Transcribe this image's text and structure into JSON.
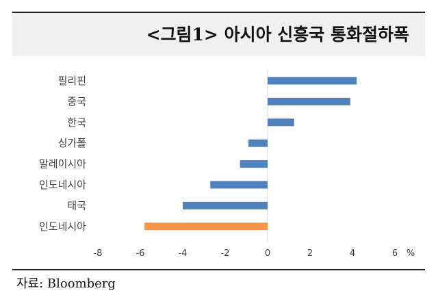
{
  "title": "<그림1> 아시아 신흥국 통화절하폭",
  "source": "자료: Bloomberg",
  "chart_data": {
    "type": "bar",
    "orientation": "horizontal",
    "categories": [
      "필리핀",
      "중국",
      "한국",
      "싱가폴",
      "말레이시아",
      "인도네시아",
      "태국",
      "인도네시아"
    ],
    "values": [
      4.2,
      3.9,
      1.25,
      -0.9,
      -1.3,
      -2.7,
      -4.0,
      -5.8
    ],
    "colors": [
      "#4f81bd",
      "#4f81bd",
      "#4f81bd",
      "#4f81bd",
      "#4f81bd",
      "#4f81bd",
      "#4f81bd",
      "#f79646"
    ],
    "x_ticks": [
      -8,
      -6,
      -4,
      -2,
      0,
      2,
      4,
      6
    ],
    "x_unit": "%",
    "xlim": [
      -8,
      6
    ],
    "grid": false
  }
}
